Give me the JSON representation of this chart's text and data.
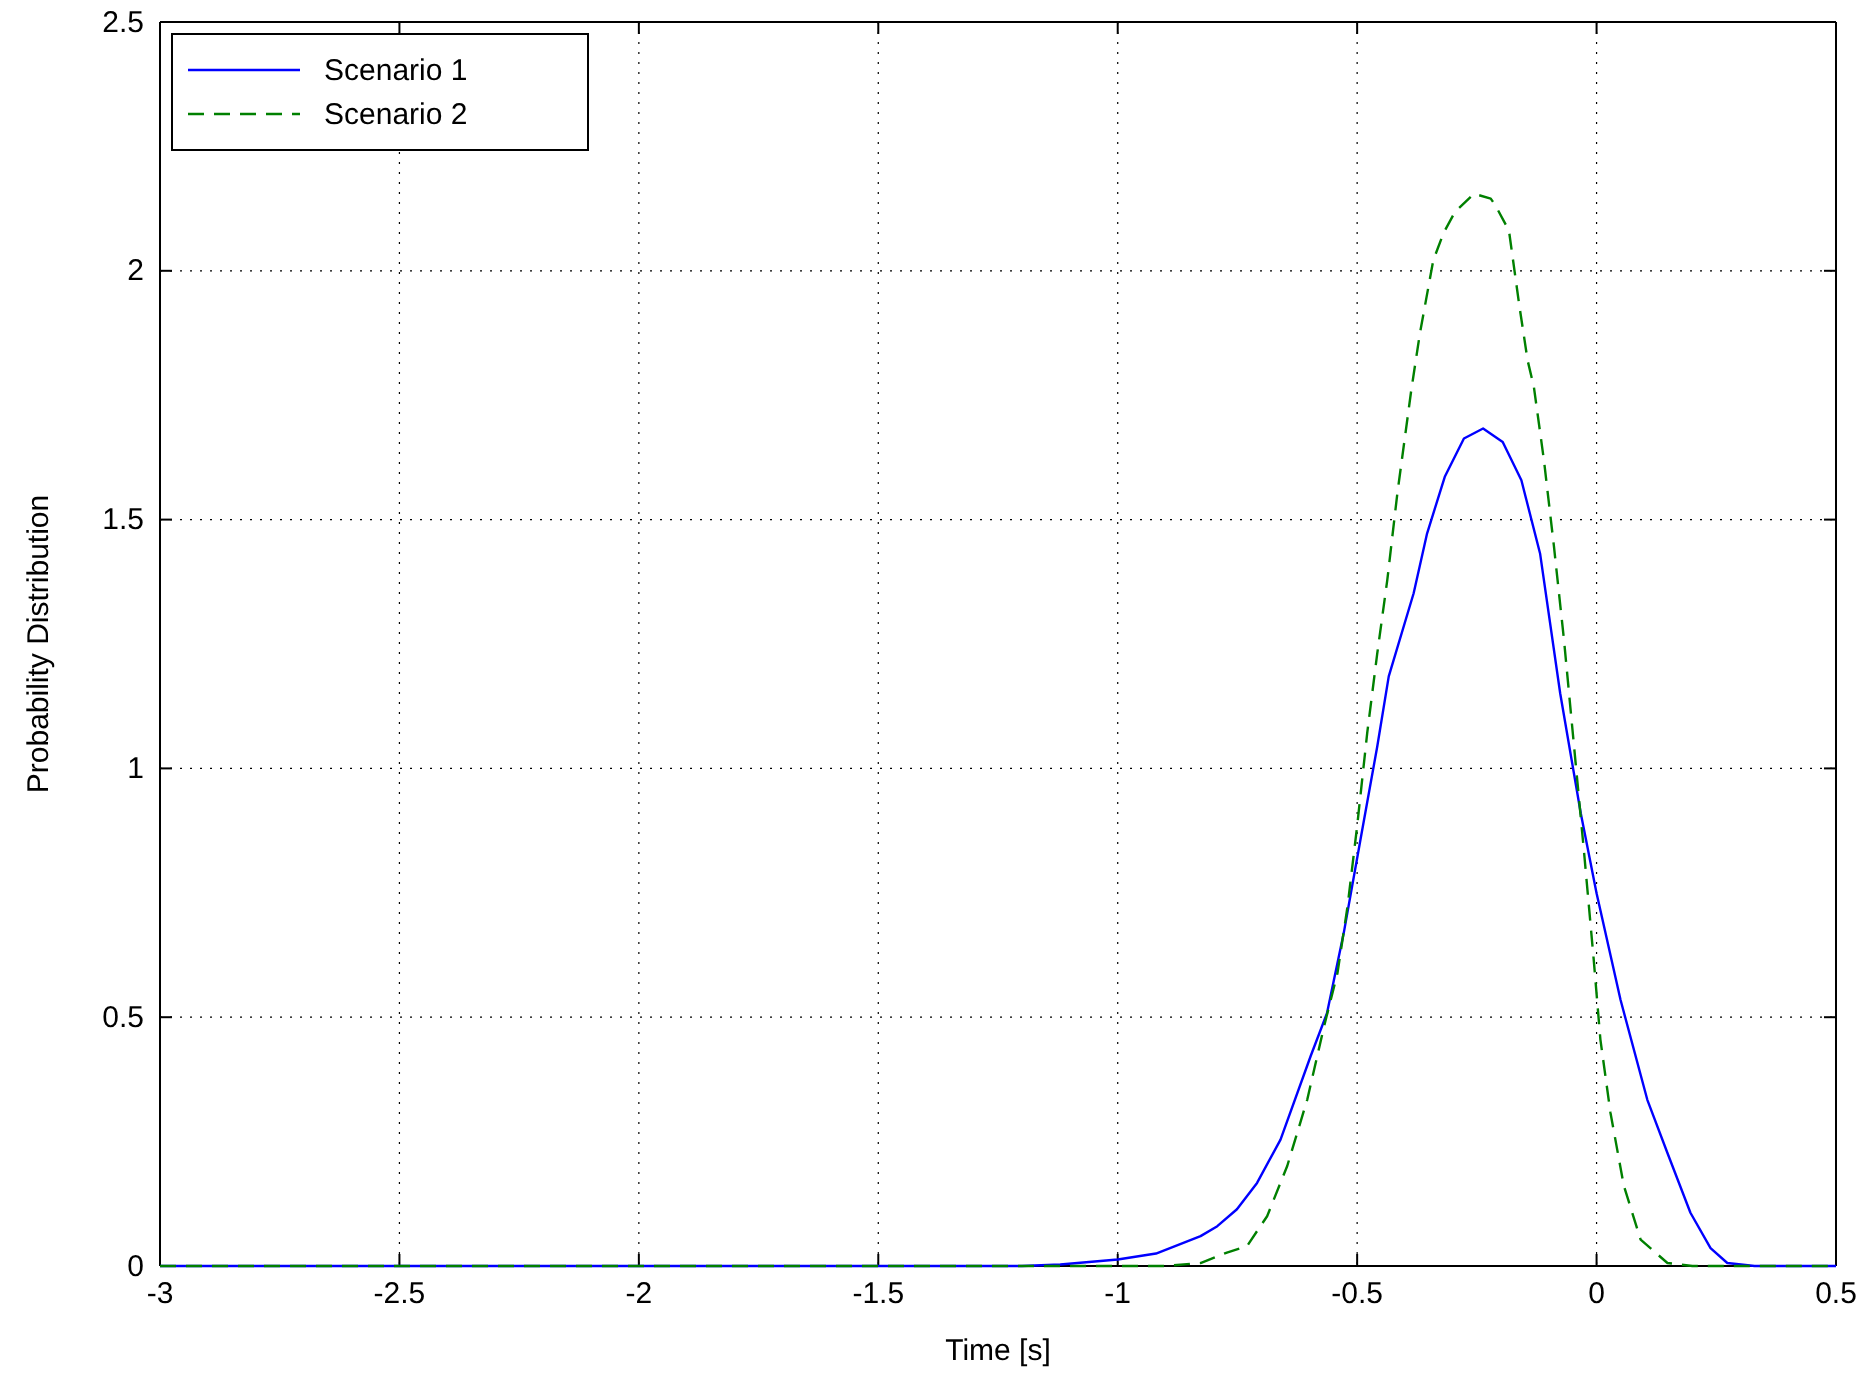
{
  "chart_data": {
    "type": "line",
    "xlabel": "Time [s]",
    "ylabel": "Probability Distribution",
    "xlim": [
      -3,
      0.5
    ],
    "ylim": [
      0,
      2.5
    ],
    "xticks": [
      -3,
      -2.5,
      -2,
      -1.5,
      -1,
      -0.5,
      0,
      0.5
    ],
    "yticks": [
      0,
      0.5,
      1,
      1.5,
      2,
      2.5
    ],
    "grid": true,
    "legend": "top left",
    "marker": "none",
    "series": [
      {
        "name": "Scenario 1",
        "color": "#0000ff",
        "line_style": "solid",
        "x": [
          -3,
          -1.2,
          -1.12,
          -1,
          -0.92,
          -0.827,
          -0.792,
          -0.751,
          -0.709,
          -0.66,
          -0.597,
          -0.563,
          -0.528,
          -0.493,
          -0.458,
          -0.434,
          -0.382,
          -0.354,
          -0.317,
          -0.277,
          -0.237,
          -0.196,
          -0.157,
          -0.118,
          -0.076,
          -0.033,
          0,
          0.05,
          0.106,
          0.148,
          0.196,
          0.238,
          0.273,
          0.33,
          0.5
        ],
        "values": [
          0,
          0,
          0.003,
          0.013,
          0.025,
          0.06,
          0.08,
          0.114,
          0.167,
          0.254,
          0.422,
          0.508,
          0.669,
          0.857,
          1.044,
          1.185,
          1.352,
          1.472,
          1.586,
          1.663,
          1.683,
          1.656,
          1.579,
          1.432,
          1.151,
          0.91,
          0.749,
          0.535,
          0.334,
          0.227,
          0.107,
          0.036,
          0.006,
          0,
          0
        ]
      },
      {
        "name": "Scenario 2",
        "color": "#008000",
        "line_style": "dashed",
        "x": [
          -3,
          -0.9,
          -0.827,
          -0.772,
          -0.73,
          -0.688,
          -0.646,
          -0.604,
          -0.569,
          -0.541,
          -0.52,
          -0.5,
          -0.479,
          -0.458,
          -0.437,
          -0.416,
          -0.387,
          -0.369,
          -0.341,
          -0.32,
          -0.296,
          -0.256,
          -0.221,
          -0.211,
          -0.183,
          -0.161,
          -0.144,
          -0.131,
          -0.11,
          -0.089,
          -0.068,
          -0.047,
          -0.026,
          -0.006,
          0.008,
          0.029,
          0.057,
          0.092,
          0.148,
          0.2,
          0.5
        ],
        "values": [
          0,
          0,
          0.006,
          0.027,
          0.04,
          0.1,
          0.201,
          0.335,
          0.482,
          0.589,
          0.723,
          0.884,
          1.071,
          1.231,
          1.379,
          1.553,
          1.76,
          1.874,
          2.021,
          2.075,
          2.118,
          2.155,
          2.145,
          2.131,
          2.081,
          1.928,
          1.82,
          1.767,
          1.62,
          1.446,
          1.258,
          1.044,
          0.83,
          0.616,
          0.455,
          0.308,
          0.161,
          0.053,
          0.006,
          0,
          0
        ]
      }
    ]
  }
}
